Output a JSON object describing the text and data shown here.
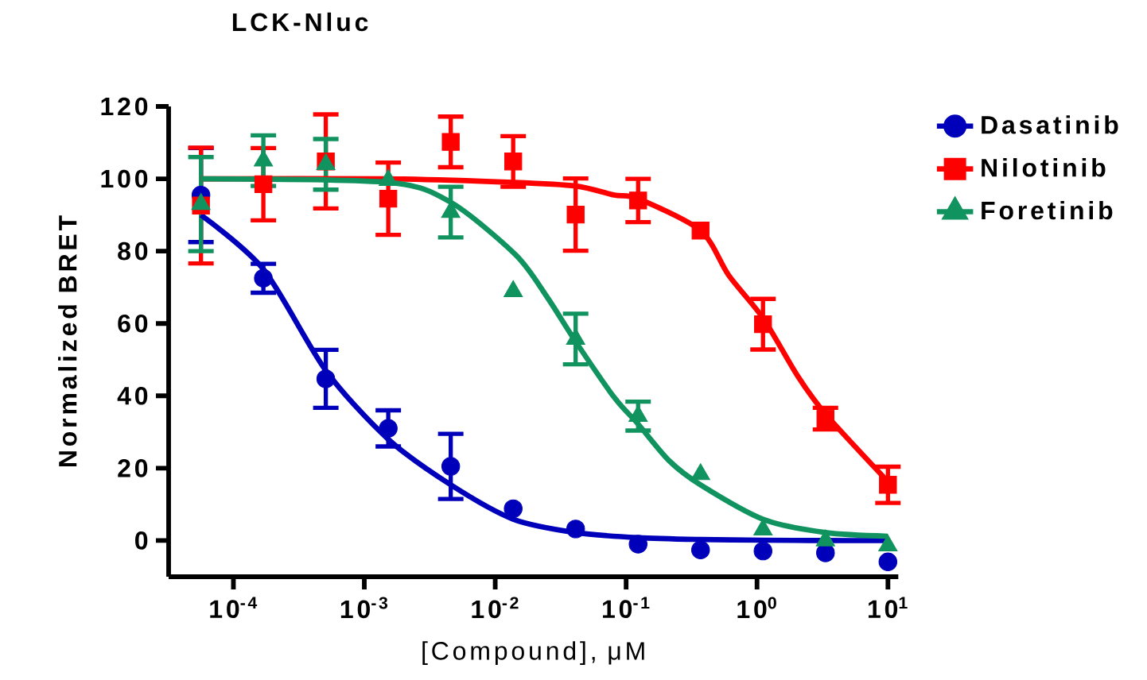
{
  "chart_data": {
    "type": "scatter",
    "title": "LCK-Nluc",
    "xlabel": "[Compound], μM",
    "ylabel": "Normalized BRET",
    "log": "x",
    "grid": false,
    "legend": "top right",
    "xlim": [
      3.2e-05,
      12
    ],
    "xticks": [
      {
        "value": 0.0001,
        "label": "10$^{-4}$"
      },
      {
        "value": 0.001,
        "label": "10$^{-3}$"
      },
      {
        "value": 0.01,
        "label": "10$^{-2}$"
      },
      {
        "value": 0.1,
        "label": "10$^{-1}$"
      },
      {
        "value": 1,
        "label": "10$^{0}$"
      },
      {
        "value": 10,
        "label": "10$^{1}$"
      }
    ],
    "ylim": [
      -10,
      120
    ],
    "yticks": [
      0,
      20,
      40,
      60,
      80,
      100,
      120
    ],
    "x": [
      5.65e-05,
      0.0001694,
      0.000508,
      0.001524,
      0.004572,
      0.01372,
      0.04115,
      0.1235,
      0.3704,
      1.111,
      3.333,
      10
    ],
    "series": [
      {
        "name": "Dasatinib",
        "color": "#0000bb",
        "marker": "circle",
        "values": [
          95.5,
          72.5,
          44.7,
          31,
          20.5,
          8.8,
          3.2,
          -1,
          -2.6,
          -2.9,
          -3.4,
          -5.9
        ],
        "errors": [
          13,
          4,
          8,
          5,
          9,
          null,
          null,
          null,
          null,
          null,
          null,
          null
        ]
      },
      {
        "name": "Nilotinib",
        "color": "#ff0000",
        "marker": "square",
        "values": [
          92.6,
          98.5,
          104.8,
          94.5,
          110.2,
          104.8,
          90.1,
          94,
          85.7,
          59.8,
          33.7,
          15.4
        ],
        "errors": [
          16,
          10,
          13,
          10,
          7,
          7,
          10,
          6,
          null,
          7,
          3,
          5
        ]
      },
      {
        "name": "Foretinib",
        "color": "#10935f",
        "marker": "triangle",
        "values": [
          93,
          105,
          104,
          99.6,
          90.8,
          68.9,
          55.7,
          34.4,
          18.3,
          3,
          0,
          -1.4
        ],
        "errors": [
          13,
          7,
          7,
          null,
          7,
          null,
          7,
          4,
          null,
          null,
          null,
          null
        ]
      },
      {
        "type": "line",
        "color": "#0000bb",
        "x": [
          5.65e-05,
          0.0001694,
          0.000508,
          0.001524,
          0.004572,
          0.01372,
          0.04115,
          0.1235,
          0.3704,
          1.111,
          3.333,
          10
        ],
        "values": [
          90,
          75,
          47,
          28,
          15.4,
          5.9,
          2.2,
          0.8,
          0.3,
          0.1,
          0,
          0
        ]
      },
      {
        "type": "line",
        "color": "#ff0000",
        "x": [
          5.65e-05,
          0.001524,
          0.01372,
          0.04115,
          0.081,
          0.1235,
          0.3704,
          0.608,
          1.111,
          2.05,
          3.333,
          10
        ],
        "values": [
          100,
          100,
          99,
          98,
          95.5,
          94.5,
          85.7,
          73.3,
          61.5,
          45.4,
          35,
          16.3
        ]
      },
      {
        "type": "line",
        "color": "#10935f",
        "x": [
          5.65e-05,
          0.001524,
          0.004572,
          0.0143,
          0.0248,
          0.04115,
          0.081,
          0.1235,
          0.214,
          0.3704,
          1.111,
          3.333,
          10
        ],
        "values": [
          100,
          99,
          93.5,
          79,
          67.4,
          55,
          39.6,
          32.2,
          22,
          15.4,
          5.9,
          2.2,
          1.2
        ]
      }
    ]
  }
}
